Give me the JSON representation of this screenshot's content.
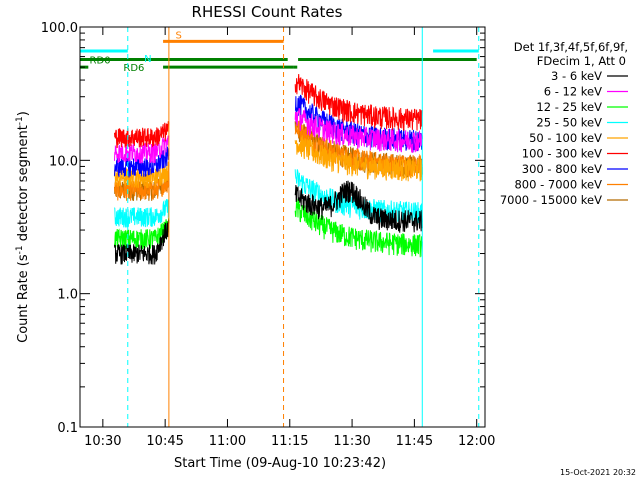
{
  "chart_data": {
    "type": "line",
    "title": "RHESSI Count Rates",
    "xlabel": "Start Time (09-Aug-10 10:23:42)",
    "ylabel_main": "Count Rate (s",
    "ylabel_sup1": "-1",
    "ylabel_mid": " detector segment",
    "ylabel_sup2": "-1",
    "ylabel_end": ")",
    "y_scale": "log",
    "ylim": [
      0.1,
      100.0
    ],
    "xlim_minutes": [
      624.5,
      722.0
    ],
    "y_ticks": [
      {
        "value": 0.1,
        "label": "0.1"
      },
      {
        "value": 1.0,
        "label": "1.0"
      },
      {
        "value": 10.0,
        "label": "10.0"
      },
      {
        "value": 100.0,
        "label": "100.0"
      }
    ],
    "x_ticks": [
      {
        "value": 630,
        "label": "10:30"
      },
      {
        "value": 645,
        "label": "10:45"
      },
      {
        "value": 660,
        "label": "11:00"
      },
      {
        "value": 675,
        "label": "11:15"
      },
      {
        "value": 690,
        "label": "11:30"
      },
      {
        "value": 705,
        "label": "11:45"
      },
      {
        "value": 720,
        "label": "12:00"
      }
    ],
    "legend_header": [
      "Det 1f,3f,4f,5f,6f,9f,",
      "FDecim 1, Att 0"
    ],
    "legend_placement": "right",
    "series": [
      {
        "name": "3 - 6 keV",
        "color": "#000000",
        "base1": 2.0,
        "peak1": 3.2,
        "base2": 5.5,
        "end2": 3.5
      },
      {
        "name": "6 - 12 keV",
        "color": "#ff00ff",
        "base1": 11.5,
        "peak1": 14.0,
        "base2": 22.0,
        "end2": 14.0
      },
      {
        "name": "12 - 25 keV",
        "color": "#00ff00",
        "base1": 2.6,
        "peak1": 3.2,
        "base2": 4.5,
        "end2": 2.3
      },
      {
        "name": "25 - 50 keV",
        "color": "#00ffff",
        "base1": 3.8,
        "peak1": 4.5,
        "base2": 7.5,
        "end2": 4.0
      },
      {
        "name": "50 - 100 keV",
        "color": "#ffa500",
        "base1": 7.5,
        "peak1": 8.5,
        "base2": 14.0,
        "end2": 8.5
      },
      {
        "name": "100 - 300 keV",
        "color": "#ff0000",
        "base1": 15.0,
        "peak1": 17.0,
        "base2": 40.0,
        "end2": 20.0
      },
      {
        "name": "300 - 800 keV",
        "color": "#0000ff",
        "base1": 9.0,
        "peak1": 11.0,
        "base2": 28.0,
        "end2": 14.0
      },
      {
        "name": "800 - 7000 keV",
        "color": "#ff8000",
        "base1": 6.0,
        "peak1": 7.0,
        "base2": 18.0,
        "end2": 9.0
      },
      {
        "name": "7000 - 15000 keV",
        "color": "#b36b00",
        "base1": 6.0,
        "peak1": 7.0,
        "base2": 18.0,
        "end2": 9.0
      }
    ],
    "segments": [
      {
        "start": 632.8,
        "end": 645.9
      },
      {
        "start": 676.3,
        "end": 706.9
      }
    ],
    "flags": [
      {
        "label": "N",
        "color": "#00ffff",
        "level": 66,
        "spans": [
          [
            624.5,
            636.0
          ],
          [
            709.5,
            720.5
          ]
        ]
      },
      {
        "label": "S",
        "color": "#ff8000",
        "level": 78,
        "spans": [
          [
            644.5,
            673.5
          ]
        ]
      },
      {
        "label": "RD0",
        "color": "#008000",
        "level": 57,
        "spans": [
          [
            624.5,
            674.5
          ],
          [
            677.0,
            720.0
          ]
        ]
      },
      {
        "label": "RD6",
        "color": "#008000",
        "level": 50,
        "spans": [
          [
            624.5,
            626.5
          ],
          [
            644.5,
            676.0
          ],
          [
            676.0,
            676.8
          ]
        ]
      }
    ],
    "vlines": [
      {
        "x": 636.0,
        "color": "#00ffff",
        "style": "dashed"
      },
      {
        "x": 645.9,
        "color": "#ff8000",
        "style": "solid"
      },
      {
        "x": 673.5,
        "color": "#ff8000",
        "style": "dashed"
      },
      {
        "x": 706.9,
        "color": "#00ffff",
        "style": "solid"
      },
      {
        "x": 720.5,
        "color": "#00ffff",
        "style": "dashed"
      }
    ]
  },
  "footer": {
    "timestamp": "15-Oct-2021 20:32"
  }
}
